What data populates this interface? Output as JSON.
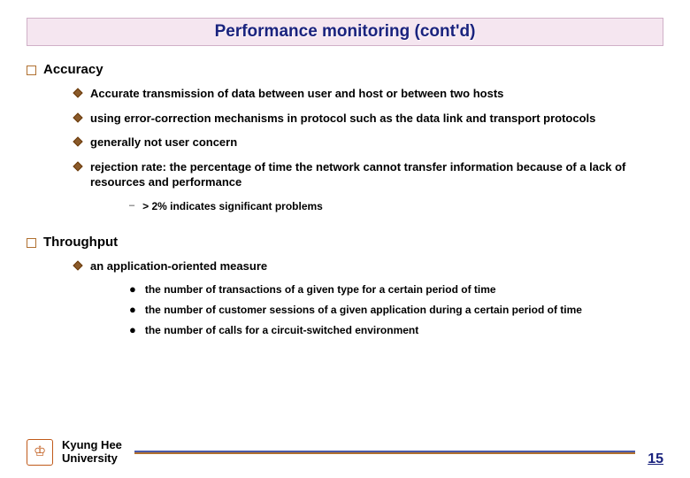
{
  "title": "Performance monitoring (cont'd)",
  "sections": {
    "accuracy": {
      "label": "Accuracy",
      "items": [
        "Accurate transmission of data between user and host or between two hosts",
        " using error-correction mechanisms in protocol such as the data link and transport protocols",
        "generally not user concern",
        "rejection rate: the percentage of time the network cannot transfer information because of a lack of resources and performance"
      ],
      "sub": "> 2% indicates significant problems"
    },
    "throughput": {
      "label": "Throughput",
      "item": "an application-oriented measure",
      "dots": [
        "the number of transactions of a given type for a certain period of time",
        "the number of customer sessions of a given application during a certain period of time",
        "the number of calls for a circuit-switched environment"
      ]
    }
  },
  "footer": {
    "line1": "Kyung Hee",
    "line2": "University",
    "page": "15"
  },
  "colors": {
    "title_bg": "#f5e6f0",
    "title_text": "#1a237e",
    "bullet_brown": "#8a5a2a"
  }
}
